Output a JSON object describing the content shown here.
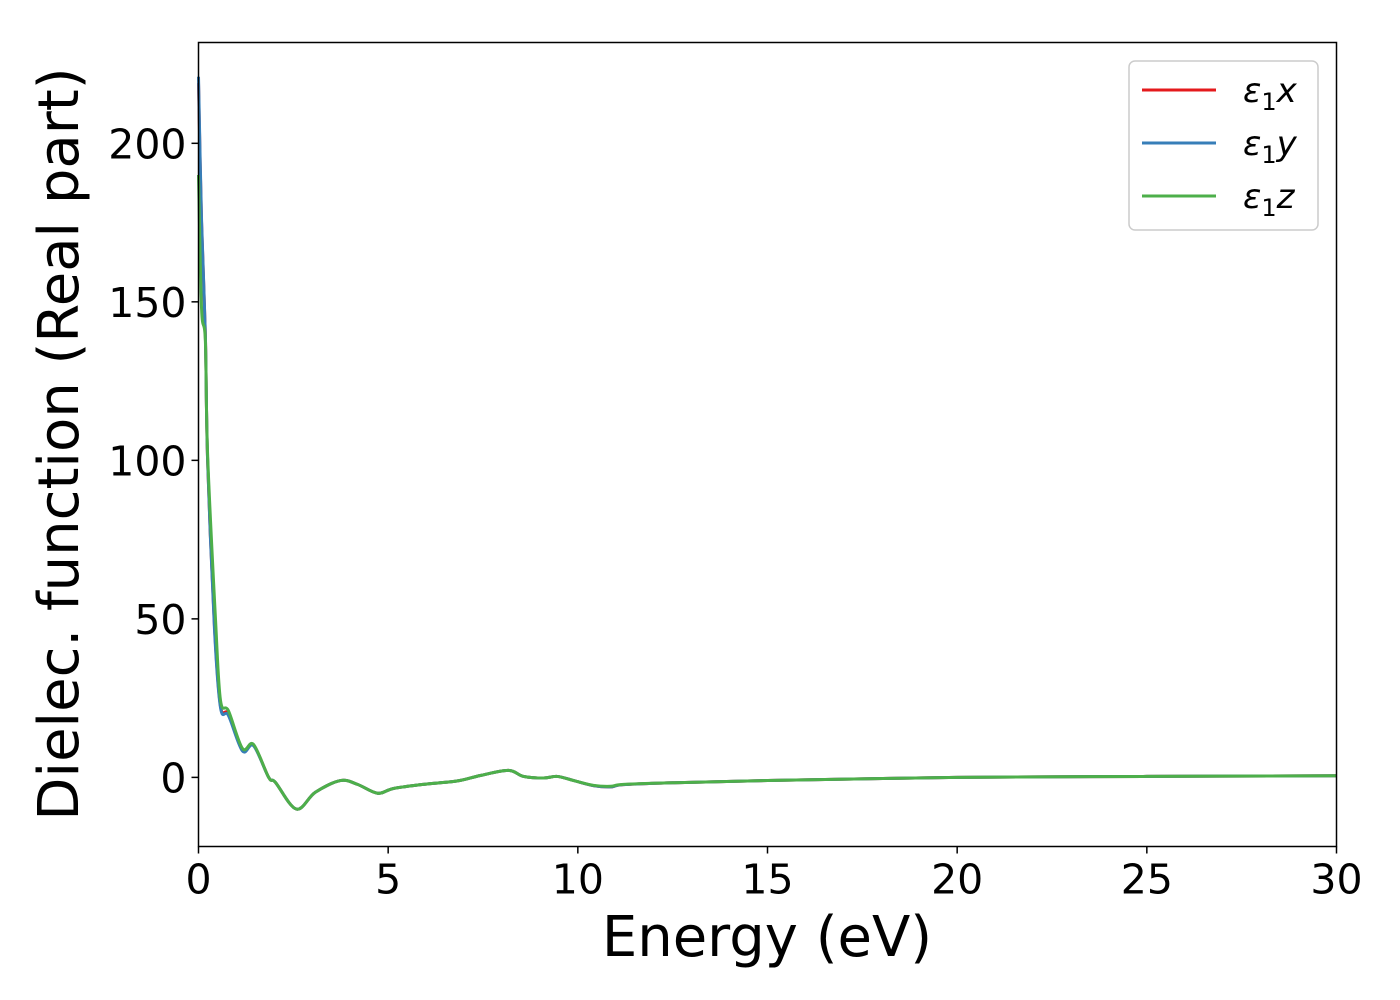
{
  "chart_data": {
    "type": "line",
    "title": "",
    "xlabel": "Energy (eV)",
    "ylabel": "Dielec. function (Real part)",
    "xlim": [
      0,
      30
    ],
    "ylim": [
      -21.8,
      231.8
    ],
    "xticks": [
      "0",
      "5",
      "10",
      "15",
      "20",
      "25",
      "30"
    ],
    "yticks": [
      "0",
      "50",
      "100",
      "150",
      "200"
    ],
    "grid": false,
    "legend_placement": "top-right",
    "series": [
      {
        "name": "ε1x",
        "label_main": "ε",
        "label_sub": "1",
        "label_var": "x",
        "color": "#e41a1c",
        "x": [
          0,
          0.08,
          0.18,
          0.24,
          0.42,
          0.58,
          0.79,
          1.16,
          1.45,
          1.85,
          2.03,
          2.58,
          3.08,
          3.74,
          4.19,
          4.72,
          5.14,
          5.93,
          6.83,
          7.43,
          8.17,
          8.57,
          9.1,
          9.46,
          9.89,
          10.41,
          10.86,
          11.2,
          12.5,
          15,
          20,
          25,
          30
        ],
        "y": [
          219,
          175,
          140,
          100,
          48,
          22.5,
          20,
          8.5,
          10.2,
          0,
          -1.6,
          -10,
          -4.7,
          -1,
          -2.2,
          -5,
          -3.5,
          -2.2,
          -1.1,
          0.6,
          2.2,
          0.3,
          -0.2,
          0.3,
          -1,
          -2.6,
          -3,
          -2.3,
          -1.7,
          -1,
          0,
          0.3,
          0.5
        ]
      },
      {
        "name": "ε1y",
        "label_main": "ε",
        "label_sub": "1",
        "label_var": "y",
        "color": "#377eb8",
        "x": [
          0,
          0.08,
          0.18,
          0.24,
          0.42,
          0.58,
          0.79,
          1.16,
          1.45,
          1.85,
          2.03,
          2.58,
          3.08,
          3.74,
          4.19,
          4.72,
          5.14,
          5.93,
          6.83,
          7.43,
          8.17,
          8.57,
          9.1,
          9.46,
          9.89,
          10.41,
          10.86,
          11.2,
          12.5,
          15,
          20,
          25,
          30
        ],
        "y": [
          221,
          176,
          140,
          100,
          47,
          22,
          19.5,
          8.3,
          10,
          0,
          -1.6,
          -10,
          -4.7,
          -1,
          -2.2,
          -5,
          -3.5,
          -2.2,
          -1.1,
          0.6,
          2.2,
          0.3,
          -0.2,
          0.3,
          -1,
          -2.6,
          -3,
          -2.3,
          -1.7,
          -1,
          0,
          0.3,
          0.5
        ]
      },
      {
        "name": "ε1z",
        "label_main": "ε",
        "label_sub": "1",
        "label_var": "z",
        "color": "#4daf4a",
        "x": [
          0,
          0.08,
          0.18,
          0.24,
          0.45,
          0.58,
          0.79,
          1.16,
          1.45,
          1.85,
          2.03,
          2.58,
          3.08,
          3.74,
          4.19,
          4.72,
          5.14,
          5.93,
          6.83,
          7.43,
          8.17,
          8.57,
          9.1,
          9.46,
          9.89,
          10.41,
          10.86,
          11.2,
          12.5,
          15,
          20,
          25,
          30
        ],
        "y": [
          190,
          148,
          138,
          102,
          49.5,
          24.3,
          21,
          9.1,
          10.4,
          0,
          -1.6,
          -10,
          -4.7,
          -1,
          -2.2,
          -5,
          -3.5,
          -2.2,
          -1.1,
          0.6,
          2.2,
          0.3,
          -0.2,
          0.3,
          -1,
          -2.5,
          -2.8,
          -2.2,
          -1.7,
          -1,
          0,
          0.3,
          0.5
        ]
      }
    ]
  }
}
